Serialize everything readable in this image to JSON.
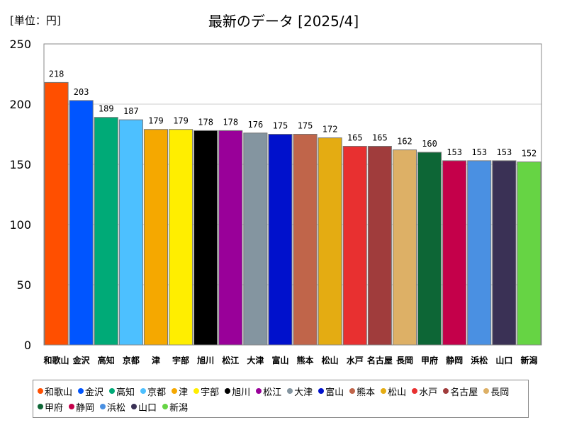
{
  "chart_data": {
    "type": "bar",
    "title": "最新のデータ [2025/4]",
    "unit_label": "[単位：円]",
    "xlabel": "",
    "ylabel": "",
    "ylim": [
      0,
      250
    ],
    "yticks": [
      0,
      50,
      100,
      150,
      200,
      250
    ],
    "grid": true,
    "legend_position": "bottom",
    "categories": [
      "和歌山",
      "金沢",
      "高知",
      "京都",
      "津",
      "宇部",
      "旭川",
      "松江",
      "大津",
      "富山",
      "熊本",
      "松山",
      "水戸",
      "名古屋",
      "長岡",
      "甲府",
      "静岡",
      "浜松",
      "山口",
      "新潟"
    ],
    "values": [
      218,
      203,
      189,
      187,
      179,
      179,
      178,
      178,
      176,
      175,
      175,
      172,
      165,
      165,
      162,
      160,
      153,
      153,
      153,
      152
    ],
    "colors": [
      "#ff4f00",
      "#0055ff",
      "#00aa77",
      "#4dc0ff",
      "#f5a800",
      "#ffee00",
      "#000000",
      "#990099",
      "#8495a0",
      "#0011cc",
      "#c0654a",
      "#e4ac12",
      "#e83030",
      "#a03c3c",
      "#ddb066",
      "#0d6636",
      "#c4004a",
      "#4a90e2",
      "#3a3155",
      "#66d444"
    ]
  }
}
